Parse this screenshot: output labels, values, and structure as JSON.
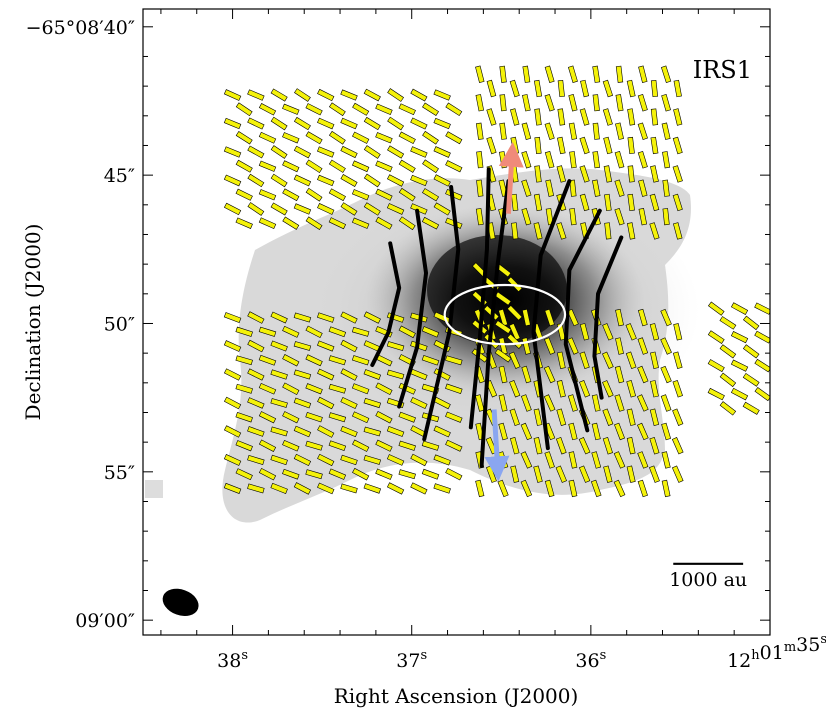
{
  "chart_data": {
    "type": "scatter",
    "title": "",
    "panel_label": "IRS1",
    "xlabel": "Right Ascension (J2000)",
    "ylabel": "Declination (J2000)",
    "x_ticks": [
      {
        "value": 38,
        "label": "38",
        "sup": "s"
      },
      {
        "value": 37,
        "label": "37",
        "sup": "s"
      },
      {
        "value": 36,
        "label": "36",
        "sup": "s"
      },
      {
        "value": 35,
        "label": "12",
        "sup": "h",
        "label2": "01",
        "sup2": "m",
        "label3": "35",
        "sup3": "s"
      }
    ],
    "y_ticks": [
      {
        "value": 40,
        "label": "−65°08′40″"
      },
      {
        "value": 45,
        "label": "45″"
      },
      {
        "value": 50,
        "label": "50″"
      },
      {
        "value": 55,
        "label": "55″"
      },
      {
        "value": 60,
        "label": "09′00″"
      }
    ],
    "xlim": [
      38.5,
      35.0
    ],
    "ylim": [
      60.5,
      39.4
    ],
    "scale_bar": {
      "label": "1000 au",
      "length_s": 0.39
    },
    "colors": {
      "vector_fill": "#f4f20a",
      "vector_edge": "#000000",
      "field_line": "#000000",
      "outflow_red": "#f08a7a",
      "outflow_blue": "#8aa6f0",
      "ellipse": "#ffffff",
      "beam": "#000000"
    },
    "outflow": {
      "red": {
        "x": [
          36.46,
          36.44
        ],
        "y": [
          46.3,
          44.3
        ]
      },
      "blue": {
        "x": [
          36.54,
          36.52
        ],
        "y": [
          52.9,
          54.9
        ]
      }
    },
    "ellipse": {
      "x": 36.48,
      "y": 49.7,
      "dx": 0.14,
      "dy": 0.95
    },
    "beam": {
      "x": 38.29,
      "y": 59.4,
      "dx": 0.045,
      "dy": 0.48
    },
    "field_lines": [
      [
        [
          37.12,
          47.3
        ],
        [
          37.07,
          48.8
        ],
        [
          37.13,
          50.3
        ],
        [
          37.22,
          51.4
        ]
      ],
      [
        [
          36.97,
          46.2
        ],
        [
          36.92,
          48.3
        ],
        [
          36.97,
          50.8
        ],
        [
          37.07,
          52.8
        ]
      ],
      [
        [
          36.78,
          45.4
        ],
        [
          36.74,
          47.5
        ],
        [
          36.79,
          50.3
        ],
        [
          36.93,
          53.9
        ]
      ],
      [
        [
          36.57,
          44.8
        ],
        [
          36.58,
          47.5
        ],
        [
          36.62,
          50.5
        ],
        [
          36.67,
          53.5
        ]
      ],
      [
        [
          36.46,
          45.2
        ],
        [
          36.52,
          48.0
        ],
        [
          36.57,
          51.0
        ],
        [
          36.61,
          54.8
        ]
      ],
      [
        [
          36.12,
          45.2
        ],
        [
          36.28,
          47.7
        ],
        [
          36.32,
          50.3
        ],
        [
          36.24,
          54.2
        ]
      ],
      [
        [
          35.95,
          46.2
        ],
        [
          36.12,
          48.2
        ],
        [
          36.14,
          50.7
        ],
        [
          36.02,
          53.6
        ]
      ],
      [
        [
          35.83,
          47.1
        ],
        [
          35.96,
          49.0
        ],
        [
          35.98,
          51.1
        ],
        [
          35.94,
          52.5
        ]
      ]
    ],
    "vector_regions": [
      {
        "name": "upper-left",
        "x": [
          38.0,
          36.75
        ],
        "y": [
          42.3,
          47.0
        ],
        "angle": 28
      },
      {
        "name": "upper-right",
        "x": [
          36.62,
          35.5
        ],
        "y": [
          41.6,
          47.3
        ],
        "angle": 78
      },
      {
        "name": "lower-left",
        "x": [
          38.0,
          36.75
        ],
        "y": [
          49.8,
          55.8
        ],
        "angle": 22
      },
      {
        "name": "lower-right",
        "x": [
          36.62,
          35.5
        ],
        "y": [
          49.8,
          55.8
        ],
        "angle": 72
      },
      {
        "name": "center",
        "x": [
          36.62,
          36.38
        ],
        "y": [
          48.2,
          51.2
        ],
        "angle": 40
      },
      {
        "name": "far-right",
        "x": [
          35.3,
          35.0
        ],
        "y": [
          49.5,
          53.0
        ],
        "angle": 32
      }
    ]
  }
}
